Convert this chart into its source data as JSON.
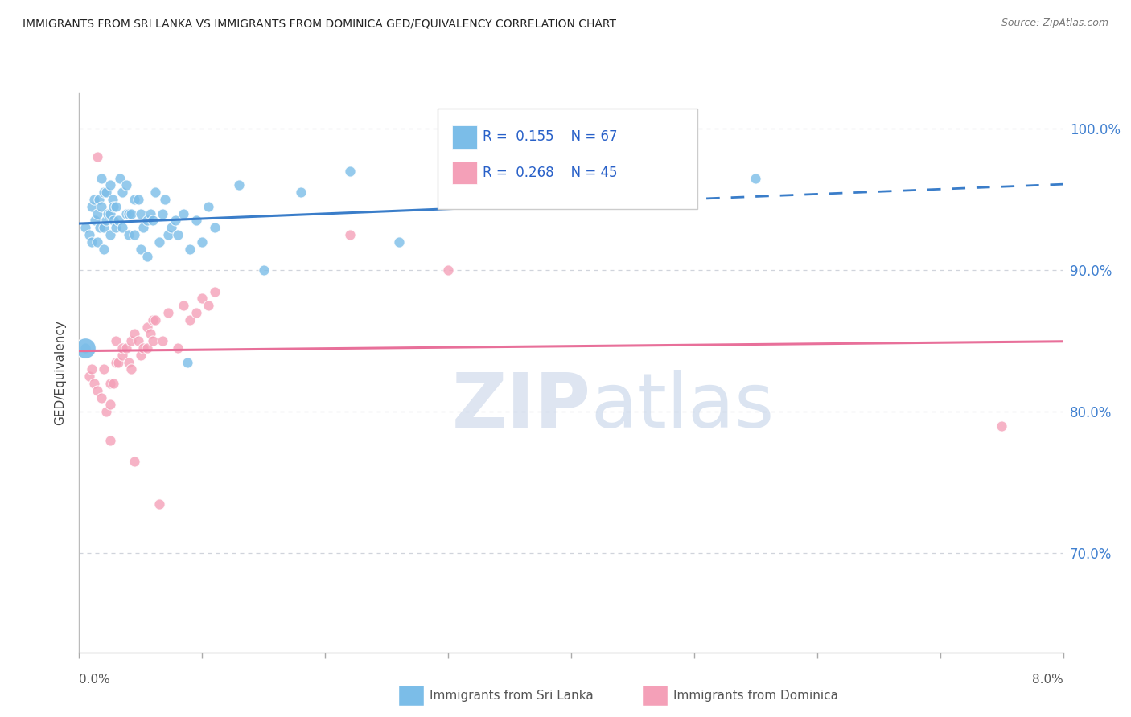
{
  "title": "IMMIGRANTS FROM SRI LANKA VS IMMIGRANTS FROM DOMINICA GED/EQUIVALENCY CORRELATION CHART",
  "source": "Source: ZipAtlas.com",
  "ylabel": "GED/Equivalency",
  "xlim": [
    0.0,
    8.0
  ],
  "ylim": [
    63.0,
    102.5
  ],
  "yticks_right": [
    70.0,
    80.0,
    90.0,
    100.0
  ],
  "ytick_labels_right": [
    "70.0%",
    "80.0%",
    "90.0%",
    "100.0%"
  ],
  "color_sri_lanka": "#7bbde8",
  "color_dominica": "#f4a0b8",
  "color_sri_lanka_line": "#3a7dc9",
  "color_dominica_line": "#e8709a",
  "color_right_axis": "#4080d0",
  "color_legend_text": "#2860c8",
  "color_grid": "#d0d4dc",
  "sri_lanka_x": [
    0.05,
    0.08,
    0.1,
    0.1,
    0.12,
    0.13,
    0.15,
    0.15,
    0.16,
    0.17,
    0.18,
    0.18,
    0.2,
    0.2,
    0.2,
    0.22,
    0.22,
    0.23,
    0.25,
    0.25,
    0.25,
    0.27,
    0.28,
    0.28,
    0.3,
    0.3,
    0.32,
    0.33,
    0.35,
    0.35,
    0.38,
    0.38,
    0.4,
    0.4,
    0.42,
    0.45,
    0.45,
    0.48,
    0.5,
    0.5,
    0.52,
    0.55,
    0.55,
    0.58,
    0.6,
    0.62,
    0.65,
    0.68,
    0.7,
    0.72,
    0.75,
    0.78,
    0.8,
    0.85,
    0.88,
    0.9,
    0.95,
    1.0,
    1.05,
    1.1,
    1.3,
    1.5,
    1.8,
    2.2,
    2.6,
    5.5,
    0.05
  ],
  "sri_lanka_y": [
    93.0,
    92.5,
    92.0,
    94.5,
    95.0,
    93.5,
    94.0,
    92.0,
    95.0,
    93.0,
    96.5,
    94.5,
    95.5,
    93.0,
    91.5,
    95.5,
    93.5,
    94.0,
    96.0,
    94.0,
    92.5,
    95.0,
    94.5,
    93.5,
    94.5,
    93.0,
    93.5,
    96.5,
    93.0,
    95.5,
    96.0,
    94.0,
    94.0,
    92.5,
    94.0,
    95.0,
    92.5,
    95.0,
    94.0,
    91.5,
    93.0,
    91.0,
    93.5,
    94.0,
    93.5,
    95.5,
    92.0,
    94.0,
    95.0,
    92.5,
    93.0,
    93.5,
    92.5,
    94.0,
    83.5,
    91.5,
    93.5,
    92.0,
    94.5,
    93.0,
    96.0,
    90.0,
    95.5,
    97.0,
    92.0,
    96.5,
    84.5
  ],
  "dominica_x": [
    0.08,
    0.1,
    0.12,
    0.15,
    0.15,
    0.18,
    0.2,
    0.22,
    0.25,
    0.25,
    0.28,
    0.3,
    0.3,
    0.32,
    0.35,
    0.35,
    0.38,
    0.4,
    0.42,
    0.42,
    0.45,
    0.45,
    0.48,
    0.5,
    0.52,
    0.55,
    0.55,
    0.58,
    0.6,
    0.6,
    0.62,
    0.65,
    0.68,
    0.72,
    0.8,
    0.85,
    0.9,
    0.95,
    1.0,
    1.05,
    1.1,
    2.2,
    3.0,
    0.25,
    7.5
  ],
  "dominica_y": [
    82.5,
    83.0,
    82.0,
    81.5,
    98.0,
    81.0,
    83.0,
    80.0,
    80.5,
    82.0,
    82.0,
    85.0,
    83.5,
    83.5,
    84.0,
    84.5,
    84.5,
    83.5,
    83.0,
    85.0,
    85.5,
    76.5,
    85.0,
    84.0,
    84.5,
    86.0,
    84.5,
    85.5,
    85.0,
    86.5,
    86.5,
    73.5,
    85.0,
    87.0,
    84.5,
    87.5,
    86.5,
    87.0,
    88.0,
    87.5,
    88.5,
    92.5,
    90.0,
    78.0,
    79.0
  ],
  "sl_trend_solid_end": 4.5,
  "watermark_zip_color": "#c8d4e8",
  "watermark_atlas_color": "#b0c4e0"
}
